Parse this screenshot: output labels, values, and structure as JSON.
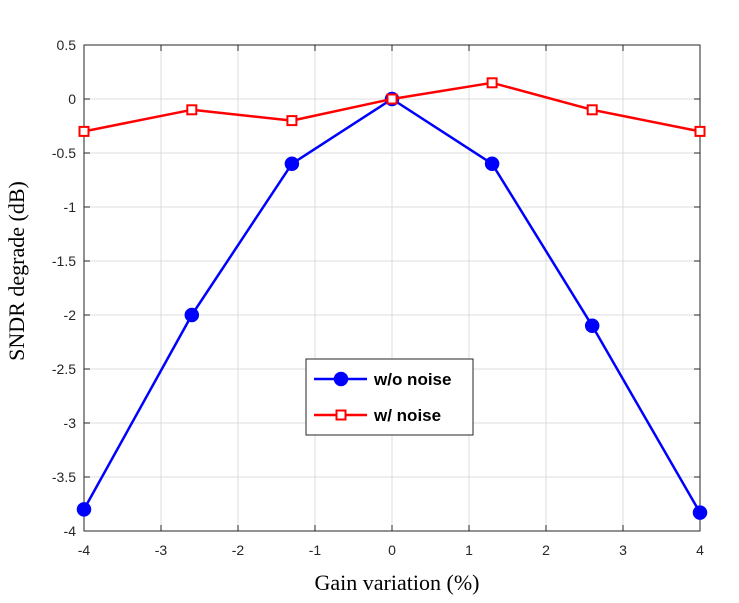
{
  "chart_data": {
    "type": "line",
    "xlabel": "Gain variation (%)",
    "ylabel": "SNDR degrade (dB)",
    "xlim": [
      -4,
      4
    ],
    "ylim": [
      -4,
      0.5
    ],
    "xticks": [
      "-4",
      "-3",
      "-2",
      "-1",
      "0",
      "1",
      "2",
      "3",
      "4"
    ],
    "yticks": [
      "0.5",
      "0",
      "-0.5",
      "-1",
      "-1.5",
      "-2",
      "-2.5",
      "-3",
      "-3.5",
      "-4"
    ],
    "grid": true,
    "legend_position": "center-bottom",
    "series": [
      {
        "name": "w/o noise",
        "color": "#0000ff",
        "marker": "filled-circle",
        "x": [
          -4,
          -2.6,
          -1.3,
          0,
          1.3,
          2.6,
          4
        ],
        "y": [
          -3.8,
          -2.0,
          -0.6,
          0.0,
          -0.6,
          -2.1,
          -3.83
        ]
      },
      {
        "name": "w/ noise",
        "color": "#ff0000",
        "marker": "open-square",
        "x": [
          -4,
          -2.6,
          -1.3,
          0,
          1.3,
          2.6,
          4
        ],
        "y": [
          -0.3,
          -0.1,
          -0.2,
          0.0,
          0.15,
          -0.1,
          -0.3
        ]
      }
    ]
  }
}
